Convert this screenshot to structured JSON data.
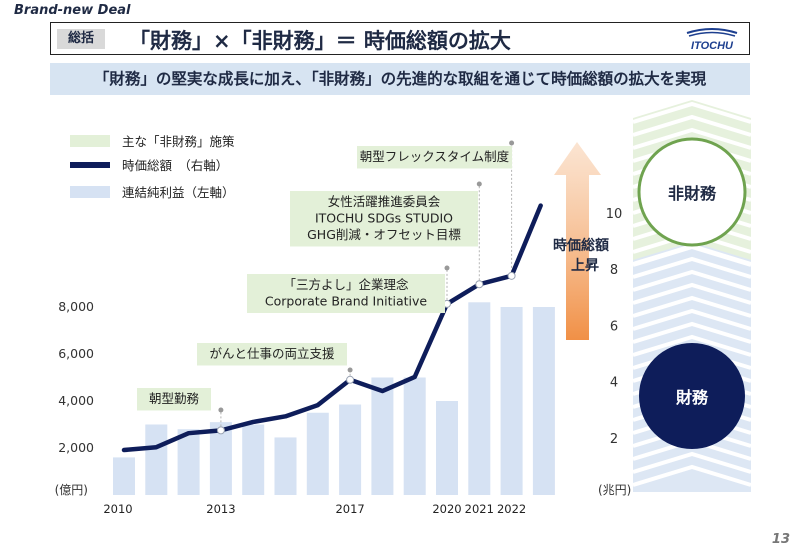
{
  "header": {
    "top_label": "Brand-new Deal",
    "tag": "総括",
    "title": "「財務」×「非財務」＝ 時価総額の拡大",
    "logo_text": "ITOCHU",
    "subtitle": "「財務」の堅実な成長に加え、「非財務」の先進的な取組を通じて時価総額の拡大を実現",
    "page_number": "13"
  },
  "legend": [
    {
      "label": "主な「非財務」施策",
      "color": "#e3f0d8"
    },
    {
      "label": "時価総額　（右軸）",
      "color": "#0e1d5a"
    },
    {
      "label": "連結純利益（左軸）",
      "color": "#d6e2f3"
    }
  ],
  "annotations": [
    {
      "lines": [
        "朝型勤務"
      ]
    },
    {
      "lines": [
        "がんと仕事の両立支援"
      ]
    },
    {
      "lines": [
        "「三方よし」企業理念",
        "Corporate Brand Initiative"
      ]
    },
    {
      "lines": [
        "女性活躍推進委員会",
        "ITOCHU SDGs STUDIO",
        "GHG削減・オフセット目標"
      ]
    },
    {
      "lines": [
        "朝型フレックスタイム制度"
      ]
    }
  ],
  "side": {
    "nonfinancial": "非財務",
    "financial": "財務",
    "arrow_label_line1": "時価総額",
    "arrow_label_line2": "上昇"
  },
  "chart_data": {
    "type": "bar",
    "xlabel": "",
    "ylabel": "(億円)",
    "ylabel_right": "(兆円)",
    "ylim": [
      0,
      10000
    ],
    "ylim_right": [
      0,
      12
    ],
    "yticks_left": [
      "2,000",
      "4,000",
      "6,000",
      "8,000"
    ],
    "yticks_right": [
      "2",
      "4",
      "6",
      "8",
      "10"
    ],
    "x_tick_labels": [
      "2010",
      "2013",
      "2017",
      "2020",
      "2021",
      "2022"
    ],
    "bars": {
      "name": "連結純利益（左軸）",
      "values": [
        1600,
        3000,
        2800,
        3100,
        3000,
        2450,
        3500,
        3850,
        5000,
        5000,
        4000,
        8200,
        8000,
        8000
      ]
    },
    "line": {
      "name": "時価総額　（右軸）",
      "points": [
        [
          2010.0,
          1.6
        ],
        [
          2011.0,
          1.7
        ],
        [
          2012.0,
          2.2
        ],
        [
          2013.0,
          2.3
        ],
        [
          2014.0,
          2.6
        ],
        [
          2015.0,
          2.8
        ],
        [
          2016.0,
          3.2
        ],
        [
          2017.0,
          4.1
        ],
        [
          2018.0,
          3.7
        ],
        [
          2019.0,
          4.2
        ],
        [
          2020.0,
          6.8
        ],
        [
          2021.0,
          7.5
        ],
        [
          2022.0,
          7.8
        ],
        [
          2022.9,
          10.3
        ]
      ],
      "marked_points": [
        3,
        7,
        10,
        11,
        12
      ]
    }
  }
}
